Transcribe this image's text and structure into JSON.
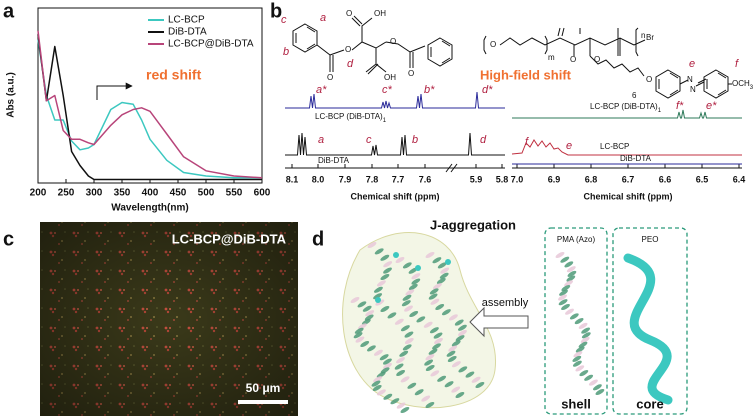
{
  "chart_data": {
    "type": "line",
    "panel_label": "a",
    "xlabel": "Wavelength(nm)",
    "ylabel": "Abs (a.u.)",
    "annotation": "red shift",
    "x": [
      200,
      215,
      230,
      245,
      260,
      275,
      290,
      300,
      330,
      350,
      370,
      385,
      400,
      430,
      460,
      500,
      550,
      600
    ],
    "series": [
      {
        "name": "LC-BCP",
        "color": "#3cc8c0",
        "values": [
          0.82,
          0.5,
          0.36,
          0.36,
          0.24,
          0.19,
          0.2,
          0.22,
          0.42,
          0.46,
          0.45,
          0.36,
          0.25,
          0.13,
          0.06,
          0.04,
          0.03,
          0.03
        ]
      },
      {
        "name": "DiB-DTA",
        "color": "#111111",
        "values": [
          0.85,
          0.47,
          0.78,
          0.5,
          0.18,
          0.1,
          0.04,
          0.02,
          0.02,
          0.02,
          0.02,
          0.02,
          0.02,
          0.02,
          0.02,
          0.02,
          0.02,
          0.02
        ]
      },
      {
        "name": "LC-BCP@DiB-DTA",
        "color": "#b8457a",
        "values": [
          0.87,
          0.47,
          0.5,
          0.3,
          0.25,
          0.25,
          0.23,
          0.22,
          0.33,
          0.39,
          0.42,
          0.43,
          0.41,
          0.28,
          0.15,
          0.07,
          0.04,
          0.03
        ]
      }
    ],
    "xlim": [
      200,
      600
    ],
    "xticks": [
      200,
      250,
      300,
      350,
      400,
      450,
      500,
      550,
      600
    ],
    "ylim": [
      0,
      1
    ]
  },
  "figure": {
    "panel_b": {
      "label": "b",
      "structure_1": {
        "labels": [
          "c",
          "a",
          "b",
          "d"
        ],
        "atoms": [
          "OH",
          "O",
          "O",
          "O",
          "O",
          "O",
          "OH"
        ]
      },
      "structure_2": {
        "atoms": [
          "O",
          "m",
          "O",
          "n",
          "Br",
          "O",
          "6",
          "O",
          "N",
          "N",
          "OCH",
          "3"
        ],
        "labels": [
          "e",
          "f"
        ]
      },
      "high_field_shift": "High-field shift",
      "spectra_left": {
        "top_label": "LC-BCP (DiB-DTA)",
        "top_sub": "1",
        "top_peaks": [
          "a*",
          "c*",
          "b*",
          "d*"
        ],
        "bottom_label": "DiB-DTA",
        "bottom_peaks": [
          "a",
          "c",
          "b",
          "d"
        ],
        "ticks": [
          "8.1",
          "8.0",
          "7.9",
          "7.8",
          "7.7",
          "7.6",
          "5.9",
          "5.8"
        ],
        "xlabel": "Chemical shift (ppm)"
      },
      "spectra_right": {
        "top_label": "LC-BCP (DiB-DTA)",
        "top_sub": "1",
        "top_peaks": [
          "f*",
          "e*"
        ],
        "middle_label": "LC-BCP",
        "middle_peaks": [
          "f",
          "e"
        ],
        "bottom_label": "DiB-DTA",
        "ticks": [
          "7.0",
          "6.9",
          "6.8",
          "6.7",
          "6.6",
          "6.5",
          "6.4"
        ],
        "xlabel": "Chemical shift (ppm)"
      }
    },
    "panel_c": {
      "label": "c",
      "title": "LC-BCP@DiB-DTA",
      "scale_bar": "50 μm"
    },
    "panel_d": {
      "label": "d",
      "title": "J-aggregation",
      "arrow_label": "assembly",
      "shell_title": "PMA (Azo)",
      "core_title": "PEO",
      "shell": "shell",
      "core": "core"
    }
  }
}
